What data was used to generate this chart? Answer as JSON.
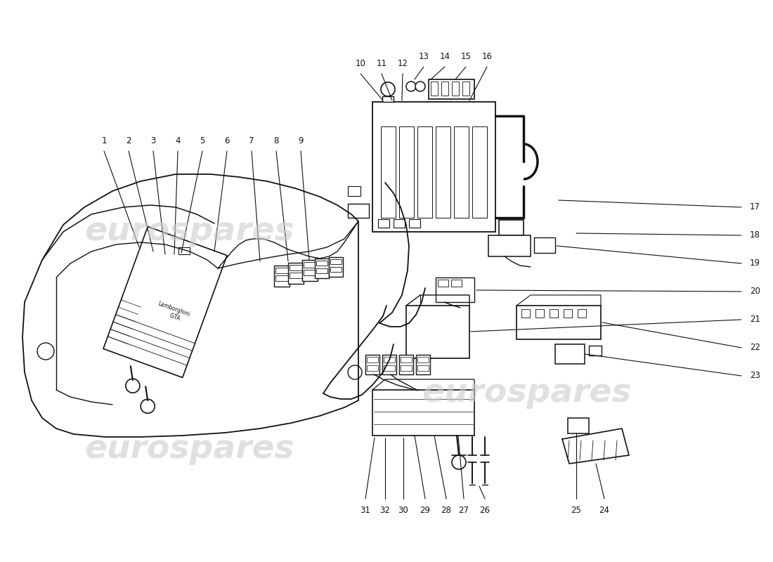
{
  "bg_color": "#ffffff",
  "line_color": "#111111",
  "wm_color": "#cccccc",
  "wm_text": "eurospares",
  "figsize": [
    11.0,
    8.0
  ],
  "dpi": 100
}
